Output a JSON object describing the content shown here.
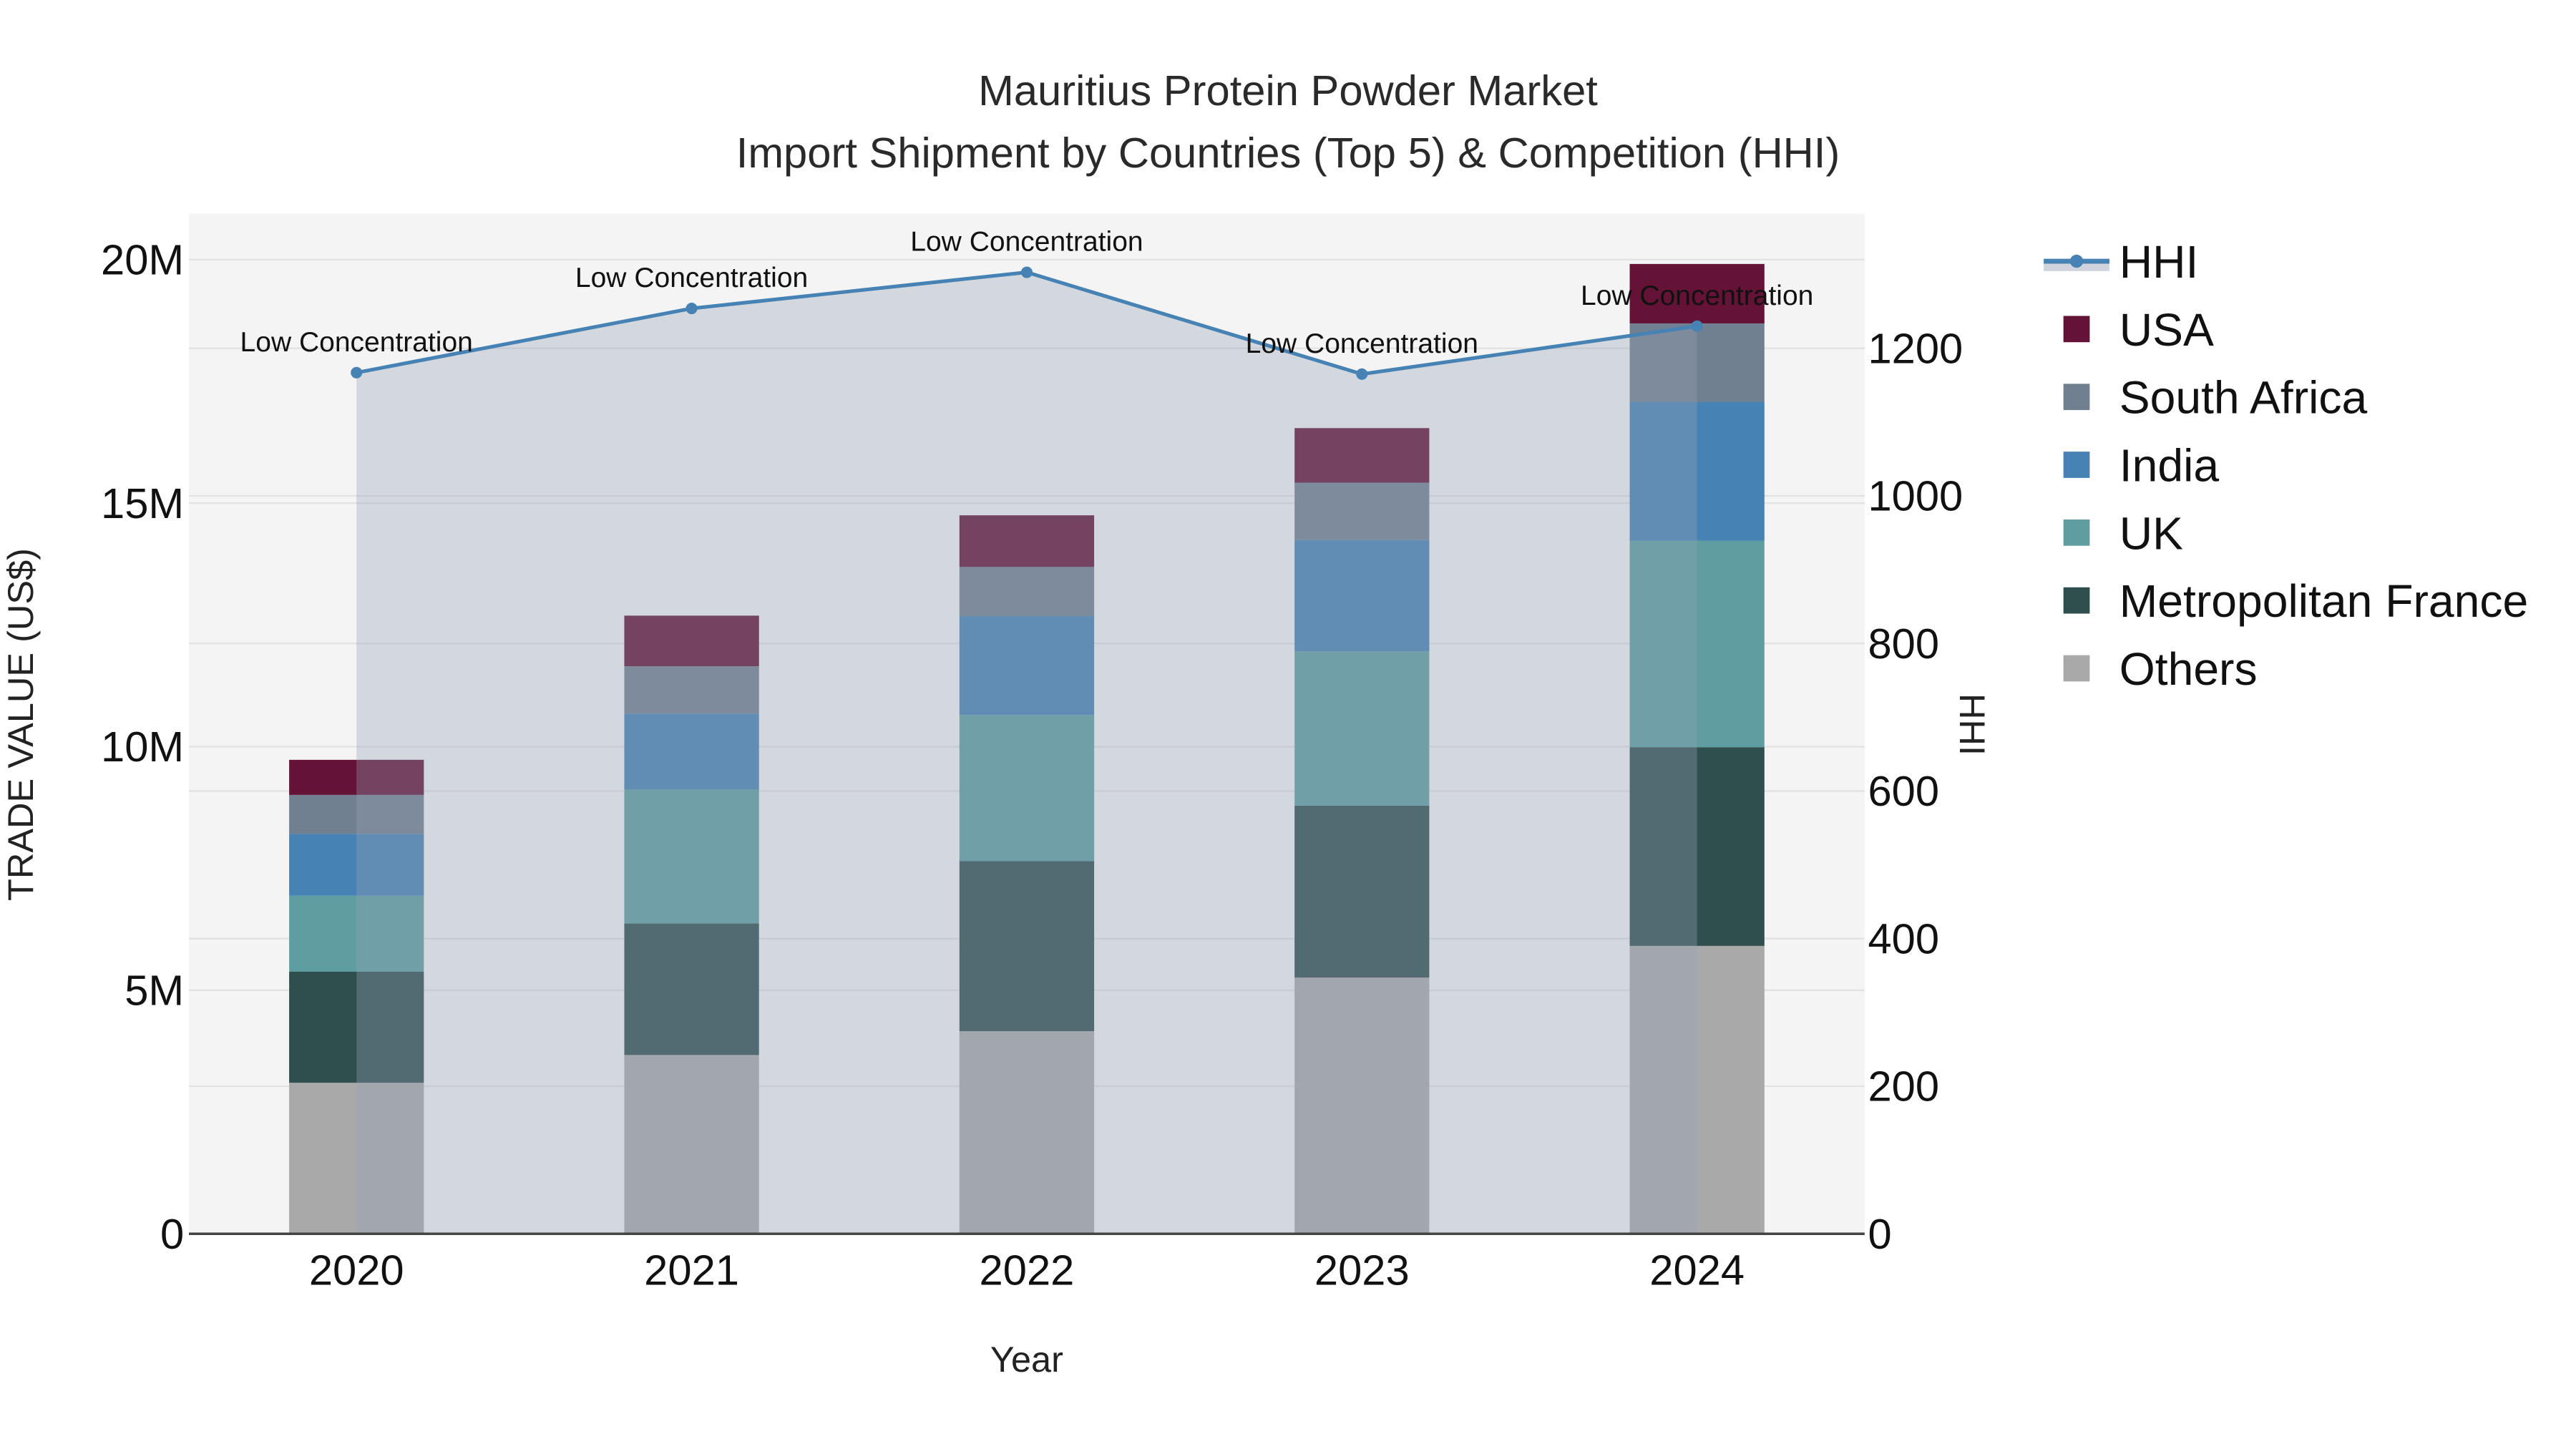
{
  "chart_data": {
    "type": "bar",
    "stacked": true,
    "title": "Mauritius Protein Powder Market",
    "subtitle": "Import Shipment by Countries (Top 5) & Competition (HHI)",
    "xlabel": "Year",
    "ylabel": "TRADE VALUE (US$)",
    "y2label": "HHI",
    "categories": [
      "2020",
      "2021",
      "2022",
      "2023",
      "2024"
    ],
    "ylim": [
      0,
      21000000
    ],
    "y_ticks": [
      "0",
      "5M",
      "10M",
      "15M",
      "20M"
    ],
    "y2lim": [
      0,
      1400
    ],
    "y2_ticks": [
      "0",
      "200",
      "400",
      "600",
      "800",
      "1000",
      "1200"
    ],
    "grid": true,
    "legend_position": "right",
    "series": [
      {
        "name": "Others",
        "color": "#A9A9A9",
        "values": [
          3100000,
          3670000,
          4160000,
          5260000,
          5910000
        ]
      },
      {
        "name": "Metropolitan France",
        "color": "#2F4F4F",
        "values": [
          2280000,
          2700000,
          3490000,
          3530000,
          4080000
        ]
      },
      {
        "name": "UK",
        "color": "#5F9EA0",
        "values": [
          1560000,
          2750000,
          3000000,
          3170000,
          4240000
        ]
      },
      {
        "name": "India",
        "color": "#4682B4",
        "values": [
          1270000,
          1560000,
          2030000,
          2280000,
          2850000
        ]
      },
      {
        "name": "South Africa",
        "color": "#708090",
        "values": [
          800000,
          970000,
          1010000,
          1180000,
          1610000
        ]
      },
      {
        "name": "USA",
        "color": "#641236",
        "values": [
          720000,
          1040000,
          1060000,
          1120000,
          1220000
        ]
      }
    ],
    "totals": [
      9730000,
      12690000,
      14750000,
      16540000,
      19910000
    ],
    "line_series": {
      "name": "HHI",
      "axis": "y2",
      "color": "#4682B4",
      "fill": "tozeroy",
      "values": [
        1167,
        1254,
        1303,
        1165,
        1230
      ],
      "annotations": [
        "Low Concentration",
        "Low Concentration",
        "Low Concentration",
        "Low Concentration",
        "Low Concentration"
      ]
    }
  },
  "legend": {
    "items": [
      {
        "label": "HHI",
        "type": "line",
        "color": "#4682B4"
      },
      {
        "label": "USA",
        "type": "box",
        "color": "#641236"
      },
      {
        "label": "South Africa",
        "type": "box",
        "color": "#708090"
      },
      {
        "label": "India",
        "type": "box",
        "color": "#4682B4"
      },
      {
        "label": "UK",
        "type": "box",
        "color": "#5F9EA0"
      },
      {
        "label": "Metropolitan France",
        "type": "box",
        "color": "#2F4F4F"
      },
      {
        "label": "Others",
        "type": "box",
        "color": "#A9A9A9"
      }
    ]
  }
}
